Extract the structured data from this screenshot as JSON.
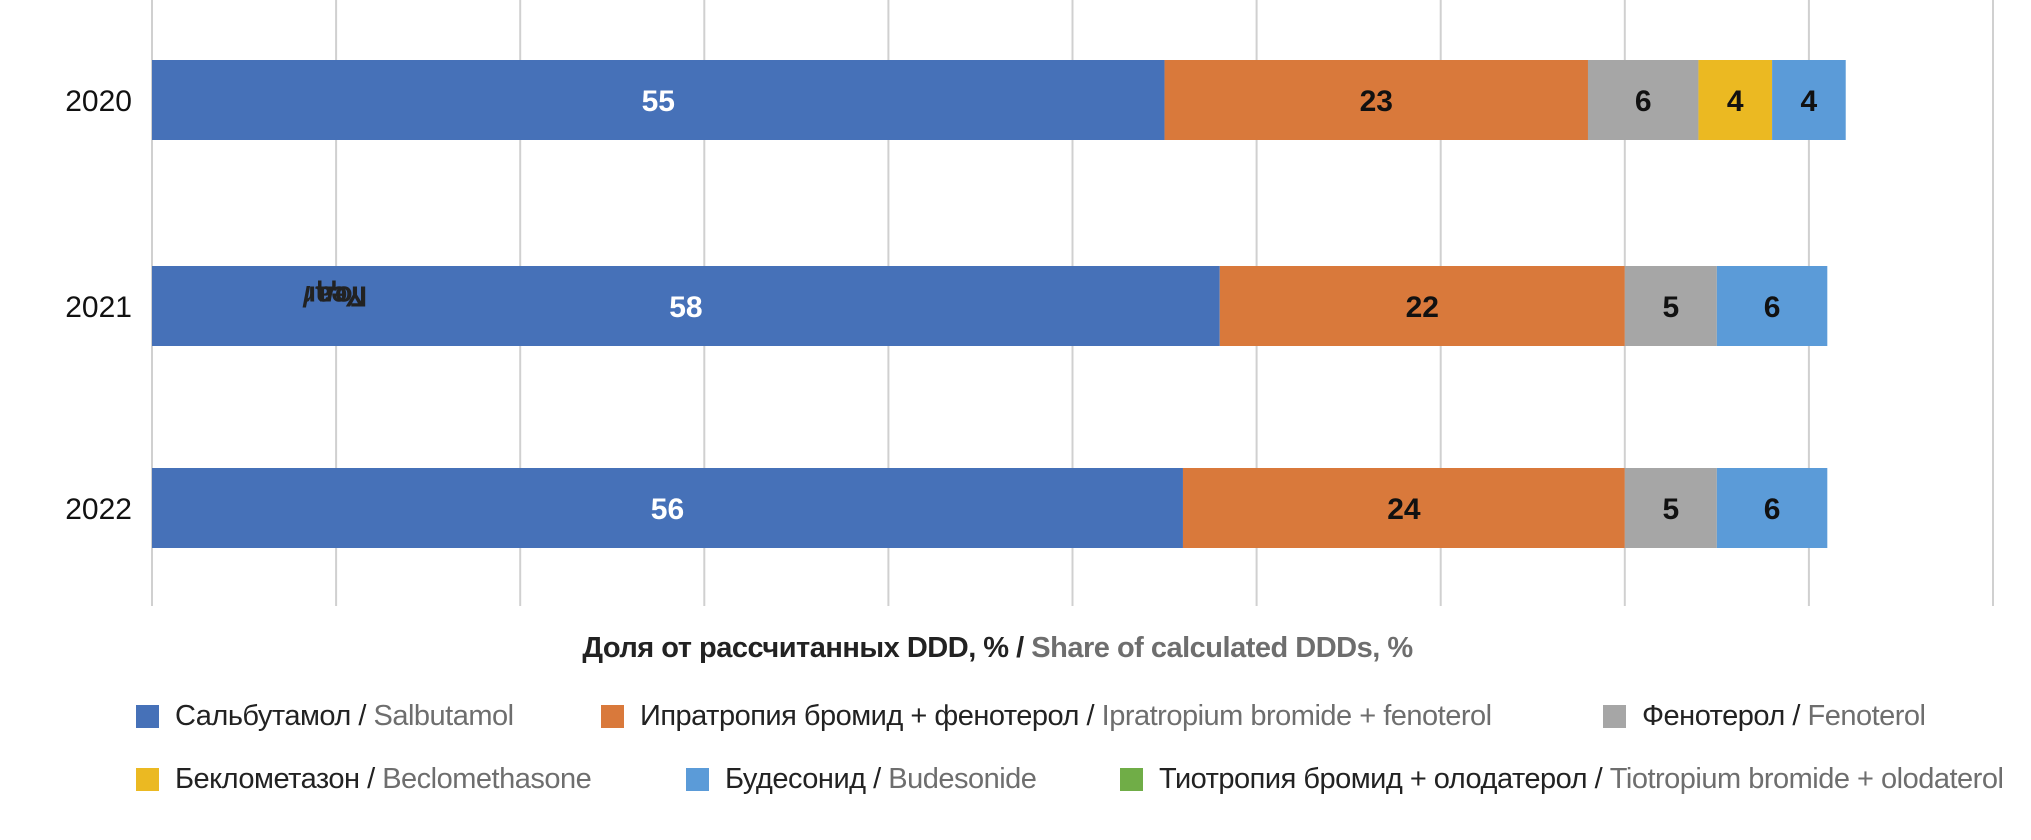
{
  "chart_data": {
    "type": "bar",
    "orientation": "horizontal",
    "stacked": true,
    "categories": [
      "2020",
      "2021",
      "2022"
    ],
    "series": [
      {
        "name": "Сальбутамол / Salbutamol",
        "name_ru": "Сальбутамол",
        "name_en": "Salbutamol",
        "color": "#4671b8",
        "label_color": "#ffffff",
        "values": [
          55,
          58,
          56
        ]
      },
      {
        "name": "Ипратропия бромид + фенотерол / Ipratropium bromide + fenoterol",
        "name_ru": "Ипратропия бромид + фенотерол",
        "name_en": "Ipratropium bromide + fenoterol",
        "color": "#d9793b",
        "label_color": "#111111",
        "values": [
          23,
          22,
          24
        ]
      },
      {
        "name": "Фенотерол / Fenoterol",
        "name_ru": "Фенотерол",
        "name_en": "Fenoterol",
        "color": "#a6a6a6",
        "label_color": "#111111",
        "values": [
          6,
          5,
          5
        ]
      },
      {
        "name": "Беклометазон / Beclomethasone",
        "name_ru": "Беклометазон",
        "name_en": "Beclomethasone",
        "color": "#ebb922",
        "label_color": "#111111",
        "values": [
          4,
          0,
          0
        ]
      },
      {
        "name": "Будесонид / Budesonide",
        "name_ru": "Будесонид",
        "name_en": "Budesonide",
        "color": "#5b9bd8",
        "label_color": "#111111",
        "values": [
          4,
          6,
          6
        ]
      },
      {
        "name": "Тиотропия бромид + олодатерол / Tiotropium bromide + olodaterol",
        "name_ru": "Тиотропия бромид + олодатерол",
        "name_en": "Tiotropium bromide + olodaterol",
        "color": "#70ad47",
        "label_color": "#111111",
        "values": [
          0,
          0,
          0
        ]
      }
    ],
    "xlabel": "Доля от рассчитанных DDD, % / Share of calculated DDDs, %",
    "xlabel_ru": "Доля от рассчитанных DDD, % /",
    "xlabel_en": "Share of calculated DDDs, %",
    "ylabel": "Год / Year",
    "ylabel_ru": "Год /",
    "ylabel_en": "Year",
    "xlim": [
      0,
      100
    ],
    "x_tick_step": 10,
    "x_tick_labels_shown": false,
    "gridlines": "vertical",
    "legend_position": "bottom"
  }
}
